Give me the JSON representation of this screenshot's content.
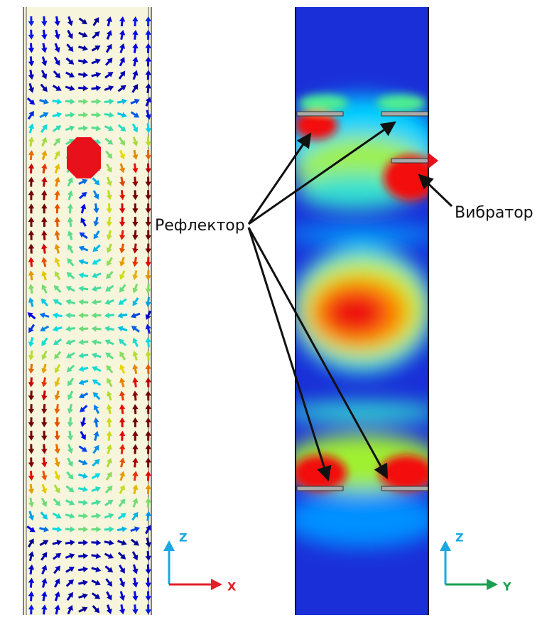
{
  "labels": {
    "reflector": "Рефлектор",
    "vibrator": "Вибратор"
  },
  "axes_left": {
    "vertical": "Z",
    "horizontal": "X"
  },
  "axes_right": {
    "vertical": "Z",
    "horizontal": "Y"
  }
}
